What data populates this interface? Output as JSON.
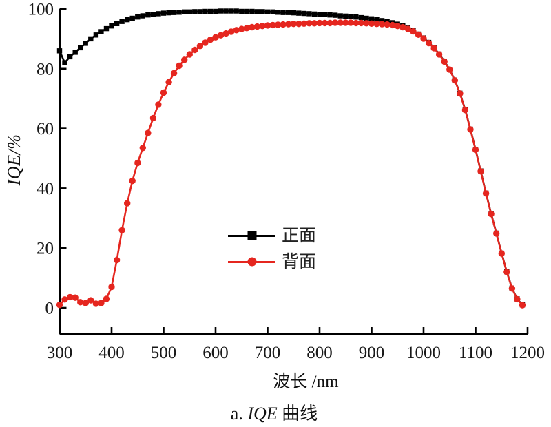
{
  "labels": {
    "y_axis": "IQE/%",
    "x_axis": "波长 /nm",
    "caption_prefix": "a. ",
    "caption_italic": "IQE",
    "caption_suffix": " 曲线"
  },
  "legend": {
    "items": [
      {
        "label": "正面",
        "marker": "square",
        "color": "#000000"
      },
      {
        "label": "背面",
        "marker": "circle",
        "color": "#e5261f"
      }
    ]
  },
  "chart_data": {
    "type": "line",
    "title": "a. IQE 曲线",
    "xlabel": "波长 /nm",
    "ylabel": "IQE/%",
    "xlim": [
      300,
      1200
    ],
    "ylim": [
      0,
      100
    ],
    "x_ticks": [
      300,
      400,
      500,
      600,
      700,
      800,
      900,
      1000,
      1100,
      1200
    ],
    "y_ticks": [
      0,
      20,
      40,
      60,
      80,
      100
    ],
    "grid": false,
    "legend_position": "center",
    "x": [
      300,
      310,
      320,
      330,
      340,
      350,
      360,
      370,
      380,
      390,
      400,
      410,
      420,
      430,
      440,
      450,
      460,
      470,
      480,
      490,
      500,
      510,
      520,
      530,
      540,
      550,
      560,
      570,
      580,
      590,
      600,
      610,
      620,
      630,
      640,
      650,
      660,
      670,
      680,
      690,
      700,
      710,
      720,
      730,
      740,
      750,
      760,
      770,
      780,
      790,
      800,
      810,
      820,
      830,
      840,
      850,
      860,
      870,
      880,
      890,
      900,
      910,
      920,
      930,
      940,
      950,
      960,
      970,
      980,
      990,
      1000,
      1010,
      1020,
      1030,
      1040,
      1050,
      1060,
      1070,
      1080,
      1090,
      1100,
      1110,
      1120,
      1130,
      1140,
      1150,
      1160,
      1170,
      1180,
      1190
    ],
    "series": [
      {
        "name": "正面",
        "id": "front",
        "color": "#000000",
        "marker": "square",
        "values": [
          86,
          82,
          84,
          85.5,
          87,
          88.5,
          90,
          91.3,
          92.4,
          93.4,
          94.3,
          95.1,
          95.8,
          96.4,
          96.9,
          97.3,
          97.7,
          98,
          98.2,
          98.4,
          98.6,
          98.7,
          98.8,
          98.9,
          99,
          99,
          99.1,
          99.1,
          99.2,
          99.2,
          99.2,
          99.3,
          99.3,
          99.3,
          99.3,
          99.2,
          99.2,
          99.2,
          99.1,
          99.1,
          99,
          99,
          98.9,
          98.8,
          98.8,
          98.7,
          98.6,
          98.5,
          98.4,
          98.3,
          98.2,
          98.1,
          98,
          97.9,
          97.7,
          97.6,
          97.4,
          97.3,
          97.1,
          96.9,
          96.7,
          96.4,
          96.1,
          95.8,
          95.4,
          94.9,
          94.3,
          93.6,
          92.7,
          91.6,
          90.3,
          88.8,
          87,
          84.9,
          82.5,
          79.8,
          76.2,
          71.8,
          66.3,
          59.8,
          53,
          45.8,
          38.4,
          31.5,
          25,
          18.3,
          12.1,
          6.6,
          3,
          1
        ]
      },
      {
        "name": "背面",
        "id": "back",
        "color": "#e5261f",
        "marker": "circle",
        "values": [
          1,
          2.8,
          3.6,
          3.4,
          1.9,
          1.6,
          2.5,
          1.4,
          1.6,
          3,
          7,
          16,
          26,
          35,
          42.5,
          48.5,
          53.5,
          58.5,
          63.5,
          68,
          72,
          75.5,
          78.5,
          81,
          83,
          84.8,
          86.3,
          87.6,
          88.7,
          89.7,
          90.5,
          91.2,
          91.8,
          92.4,
          92.9,
          93.3,
          93.6,
          93.9,
          94.1,
          94.3,
          94.5,
          94.6,
          94.7,
          94.8,
          94.9,
          95,
          95,
          95.1,
          95.2,
          95.2,
          95.3,
          95.3,
          95.3,
          95.4,
          95.4,
          95.4,
          95.4,
          95.3,
          95.3,
          95.2,
          95.1,
          95,
          94.9,
          94.8,
          94.6,
          94.3,
          93.9,
          93.3,
          92.5,
          91.4,
          90.1,
          88.6,
          86.9,
          84.8,
          82.4,
          79.7,
          76.1,
          71.7,
          66.2,
          59.7,
          52.9,
          45.7,
          38.3,
          31.4,
          24.9,
          18.2,
          12,
          6.5,
          2.9,
          0.9
        ]
      }
    ]
  }
}
